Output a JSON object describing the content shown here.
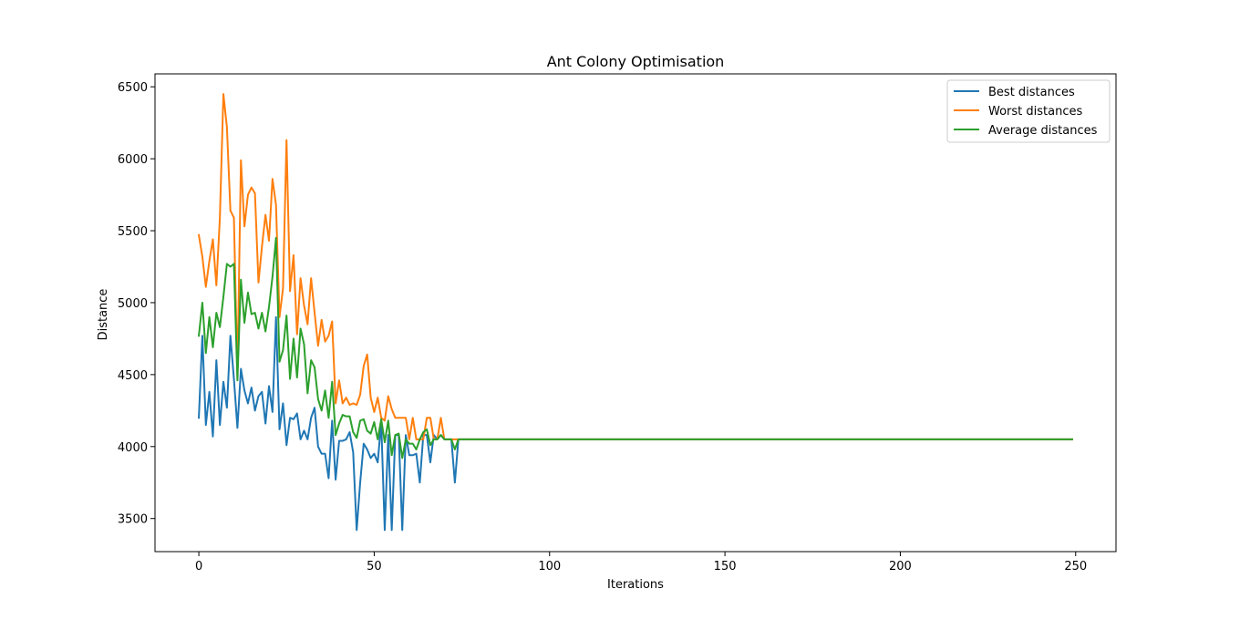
{
  "chart_data": {
    "type": "line",
    "title": "Ant Colony Optimisation",
    "xlabel": "Iterations",
    "ylabel": "Distance",
    "xlim": [
      -12.5,
      261.5
    ],
    "ylim": [
      3270,
      6590
    ],
    "xticks": [
      0,
      50,
      100,
      150,
      200,
      250
    ],
    "yticks": [
      3500,
      4000,
      4500,
      5000,
      5500,
      6000,
      6500
    ],
    "grid": false,
    "legend_position": "top-right",
    "flat_value": 4050,
    "flat_until": 249,
    "series": [
      {
        "name": "Best distances",
        "color": "#1f77b4",
        "values": [
          4200,
          4770,
          4150,
          4380,
          4070,
          4600,
          4150,
          4450,
          4270,
          4770,
          4470,
          4130,
          4540,
          4390,
          4300,
          4410,
          4250,
          4350,
          4380,
          4160,
          4420,
          4240,
          4900,
          4120,
          4300,
          4010,
          4200,
          4190,
          4230,
          4050,
          4110,
          4050,
          4200,
          4270,
          4000,
          3950,
          3950,
          3780,
          4180,
          3770,
          4040,
          4040,
          4050,
          4100,
          3960,
          3420,
          3750,
          4020,
          3980,
          3920,
          3950,
          3890,
          4170,
          3420,
          4080,
          3420,
          4080,
          4080,
          3420,
          4080,
          3940,
          3940,
          3950,
          3750,
          4080,
          4080,
          3890,
          4080,
          4050,
          4080,
          4050,
          4050,
          4050,
          3750,
          4050
        ]
      },
      {
        "name": "Worst distances",
        "color": "#ff7f0e",
        "values": [
          5470,
          5320,
          5110,
          5290,
          5440,
          5120,
          5590,
          6450,
          6220,
          5640,
          5590,
          4500,
          5990,
          5530,
          5750,
          5800,
          5760,
          5140,
          5390,
          5610,
          5430,
          5860,
          5680,
          4900,
          5100,
          6130,
          5080,
          5330,
          4780,
          5170,
          4980,
          4850,
          5170,
          4930,
          4700,
          4880,
          4730,
          4770,
          4870,
          4300,
          4460,
          4300,
          4340,
          4290,
          4300,
          4290,
          4360,
          4560,
          4640,
          4340,
          4240,
          4340,
          4200,
          4180,
          4350,
          4260,
          4200,
          4200,
          4200,
          4200,
          4050,
          4200,
          4050,
          4050,
          4050,
          4200,
          4200,
          4050,
          4050,
          4200,
          4050,
          4050,
          4050,
          4050,
          4050
        ]
      },
      {
        "name": "Average distances",
        "color": "#2ca02c",
        "values": [
          4770,
          5000,
          4650,
          4900,
          4690,
          4930,
          4830,
          5040,
          5270,
          5250,
          5270,
          4460,
          5160,
          4860,
          5070,
          4920,
          4930,
          4820,
          4930,
          4800,
          4970,
          5180,
          5450,
          4590,
          4670,
          4910,
          4470,
          4750,
          4480,
          4820,
          4710,
          4370,
          4600,
          4550,
          4330,
          4250,
          4390,
          4200,
          4450,
          4080,
          4160,
          4220,
          4210,
          4210,
          4100,
          4060,
          4180,
          4190,
          4110,
          4090,
          4170,
          4050,
          4190,
          4030,
          4180,
          3940,
          4080,
          4090,
          3920,
          4050,
          4020,
          4020,
          3980,
          4050,
          4100,
          4120,
          4010,
          4050,
          4050,
          4080,
          4050,
          4050,
          4050,
          3980,
          4050
        ]
      }
    ]
  }
}
